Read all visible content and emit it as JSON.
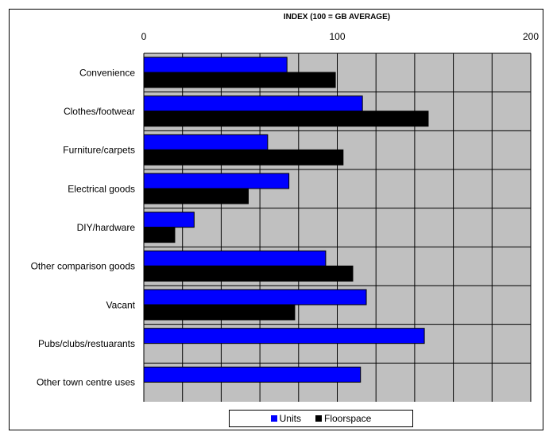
{
  "chart_data": {
    "type": "bar",
    "orientation": "horizontal",
    "title": "INDEX (100 = GB AVERAGE)",
    "xlim": [
      0,
      200
    ],
    "xticks": [
      0,
      100,
      200
    ],
    "grid": true,
    "legend_position": "bottom",
    "categories": [
      "Convenience",
      "Clothes/footwear",
      "Furniture/carpets",
      "Electrical goods",
      "DIY/hardware",
      "Other comparison goods",
      "Vacant",
      "Pubs/clubs/restuarants",
      "Other town centre uses"
    ],
    "series": [
      {
        "name": "Units",
        "color": "#0000ff",
        "values": [
          74,
          113,
          64,
          75,
          26,
          94,
          115,
          145,
          112
        ]
      },
      {
        "name": "Floorspace",
        "color": "#000000",
        "values": [
          99,
          147,
          103,
          54,
          16,
          108,
          78,
          null,
          null
        ]
      }
    ],
    "plot_background": "#c0c0c0"
  }
}
